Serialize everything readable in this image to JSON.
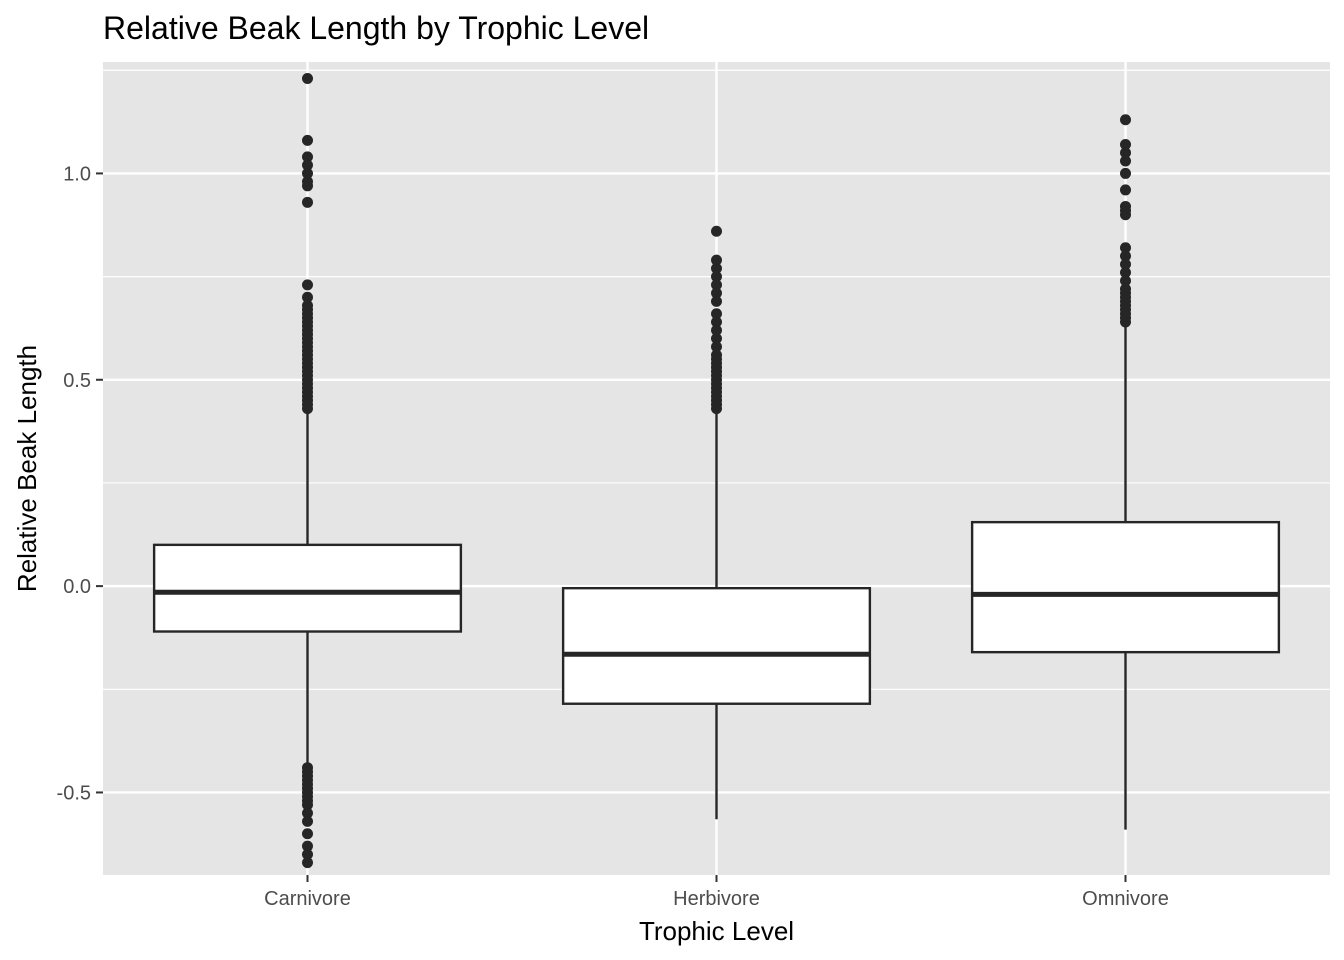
{
  "chart_data": {
    "type": "box",
    "title": "Relative Beak Length by Trophic Level",
    "xlabel": "Trophic Level",
    "ylabel": "Relative Beak Length",
    "ylim": [
      -0.7,
      1.27
    ],
    "yticks": [
      -0.5,
      0.0,
      0.5,
      1.0
    ],
    "ytick_labels": [
      "-0.5",
      "0.0",
      "0.5",
      "1.0"
    ],
    "grid": true,
    "panel_background": "#e5e5e5",
    "grid_color": "#ffffff",
    "box_fill": "#ffffff",
    "box_stroke": "#262626",
    "categories": [
      "Carnivore",
      "Herbivore",
      "Omnivore"
    ],
    "boxes": [
      {
        "category": "Carnivore",
        "q1": -0.11,
        "median": -0.015,
        "q3": 0.1,
        "whisker_low": -0.43,
        "whisker_high": 0.42,
        "outliers": [
          1.23,
          1.08,
          1.04,
          1.02,
          1.0,
          0.98,
          0.97,
          0.93,
          0.73,
          0.7,
          0.68,
          0.67,
          0.66,
          0.65,
          0.64,
          0.63,
          0.62,
          0.61,
          0.6,
          0.59,
          0.58,
          0.57,
          0.56,
          0.55,
          0.54,
          0.53,
          0.52,
          0.51,
          0.5,
          0.49,
          0.48,
          0.47,
          0.46,
          0.45,
          0.44,
          0.43,
          -0.44,
          -0.45,
          -0.46,
          -0.47,
          -0.48,
          -0.49,
          -0.5,
          -0.51,
          -0.52,
          -0.53,
          -0.55,
          -0.57,
          -0.6,
          -0.63,
          -0.65,
          -0.67
        ]
      },
      {
        "category": "Herbivore",
        "q1": -0.285,
        "median": -0.165,
        "q3": -0.005,
        "whisker_low": -0.565,
        "whisker_high": 0.42,
        "outliers": [
          0.86,
          0.79,
          0.77,
          0.75,
          0.73,
          0.71,
          0.69,
          0.66,
          0.64,
          0.62,
          0.6,
          0.58,
          0.56,
          0.55,
          0.54,
          0.53,
          0.52,
          0.51,
          0.5,
          0.49,
          0.48,
          0.47,
          0.46,
          0.45,
          0.44,
          0.43
        ]
      },
      {
        "category": "Omnivore",
        "q1": -0.16,
        "median": -0.02,
        "q3": 0.155,
        "whisker_low": -0.59,
        "whisker_high": 0.635,
        "outliers": [
          1.13,
          1.07,
          1.05,
          1.03,
          1.0,
          0.96,
          0.92,
          0.91,
          0.9,
          0.82,
          0.8,
          0.78,
          0.76,
          0.74,
          0.72,
          0.71,
          0.7,
          0.69,
          0.68,
          0.67,
          0.66,
          0.65,
          0.64
        ]
      }
    ]
  }
}
